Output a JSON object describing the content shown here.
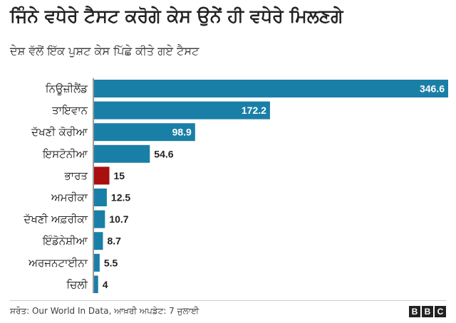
{
  "title": "ਜਿੰਨੇ ਵਧੇਰੇ ਟੈਸਟ ਕਰੋਗੇ ਕੇਸ ਉਨੇਂ ਹੀ ਵਧੇਰੇ ਮਿਲਣਗੇ",
  "subtitle": "ਦੇਸ਼ ਵੱਲੋਂ ਇੱਕ ਪੁਸ਼ਟ ਕੇਸ ਪਿੱਛੇ ਕੀਤੇ ਗਏ ਟੈਸਟ",
  "source": "ਸਰੋਤ: Our World In Data, ਆਖ਼ਰੀ ਅਪਡੇਟ: 7 ਜੁਲਾਈ",
  "logo": [
    "B",
    "B",
    "C"
  ],
  "colors": {
    "bar": "#1a7fa6",
    "highlight": "#a80f0f",
    "label_inside": "#ffffff",
    "label_outside": "#222222"
  },
  "chart_data": {
    "type": "bar",
    "orientation": "horizontal",
    "categories": [
      "ਨਿਊਜ਼ੀਲੈਂਡ",
      "ਤਾਇਵਾਨ",
      "ਦੱਖਣੀ ਕੋਰੀਆ",
      "ਇਸਟੋਨੀਆ",
      "ਭਾਰਤ",
      "ਅਮਰੀਕਾ",
      "ਦੱਖਣੀ ਅਫ਼ਰੀਕਾ",
      "ਇੰਡੋਨੇਸ਼ੀਆ",
      "ਅਰਜਨਟਾਈਨਾ",
      "ਚਿਲੀ"
    ],
    "values": [
      346.6,
      172.2,
      98.9,
      54.6,
      15,
      12.5,
      10.7,
      8.7,
      5.5,
      4
    ],
    "value_labels": [
      "346.6",
      "172.2",
      "98.9",
      "54.6",
      "15",
      "12.5",
      "10.7",
      "8.7",
      "5.5",
      "4"
    ],
    "highlight": "ਭਾਰਤ",
    "xlim": [
      0,
      346.6
    ],
    "grid": false,
    "legend": "none"
  }
}
